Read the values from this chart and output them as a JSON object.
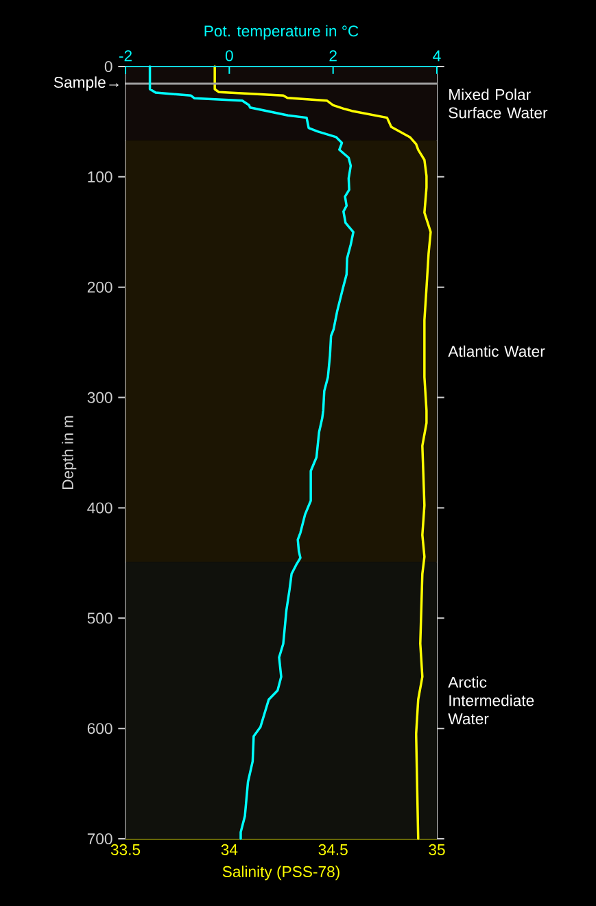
{
  "chart_data": {
    "type": "line",
    "xlabel": "Salinity (PSS-78)",
    "x2label": "Pot. temperature in °C",
    "ylabel": "Depth in m",
    "xlim": [
      33.5,
      35
    ],
    "xticks": [
      33.5,
      34,
      34.5,
      35
    ],
    "x2lim": [
      -2,
      4
    ],
    "x2ticks": [
      -2,
      0,
      2,
      4
    ],
    "ylim": [
      700,
      0
    ],
    "yticks": [
      0,
      100,
      200,
      300,
      400,
      500,
      600,
      700
    ],
    "series": [
      {
        "color": "#ffff00",
        "x": [
          33.93,
          33.93,
          33.95,
          34.26,
          34.28,
          34.47,
          34.5,
          34.55,
          34.59,
          34.76,
          34.78,
          34.87,
          34.9,
          34.91,
          34.94,
          34.95,
          34.95,
          34.94,
          34.97,
          34.96,
          34.95,
          34.94,
          34.94,
          34.95,
          34.95,
          34.93,
          34.94,
          34.93,
          34.94,
          34.93,
          34.92,
          34.93,
          34.91,
          34.9,
          34.91
        ],
        "values": [
          0,
          20.5,
          23.2,
          26.3,
          28.4,
          30.9,
          35,
          38.1,
          40.2,
          46.4,
          54.7,
          64,
          70.3,
          75.4,
          84.7,
          99.3,
          109.6,
          132.4,
          150,
          169.7,
          200.8,
          229.8,
          281.6,
          311.7,
          323,
          343.8,
          397.7,
          424.6,
          444.3,
          459.9,
          523.1,
          553.1,
          573.8,
          604.9,
          700
        ]
      },
      {
        "color": "#00ffff",
        "axis": "x2",
        "x": [
          -1.53,
          -1.53,
          -1.42,
          -0.74,
          -0.67,
          0.25,
          0.38,
          0.4,
          1.13,
          1.49,
          1.53,
          1.7,
          2.06,
          2.17,
          2.12,
          2.3,
          2.34,
          2.3,
          2.31,
          2.23,
          2.26,
          2.2,
          2.24,
          2.39,
          2.34,
          2.27,
          2.26,
          2.19,
          2.08,
          2.01,
          1.96,
          1.94,
          1.9,
          1.83,
          1.81,
          1.79,
          1.73,
          1.68,
          1.57,
          1.57,
          1.46,
          1.37,
          1.32,
          1.34,
          1.37,
          1.29,
          1.2,
          1.16,
          1.1,
          1.04,
          0.96,
          1.0,
          0.93,
          0.76,
          0.6,
          0.47,
          0.45,
          0.36,
          0.3,
          0.22,
          0.22
        ],
        "values": [
          0,
          20.5,
          23.6,
          26.3,
          28.8,
          30.9,
          35,
          37.1,
          44.3,
          46.4,
          55.7,
          58.8,
          64,
          69.2,
          75.4,
          82.7,
          90,
          101.3,
          111.7,
          117.9,
          126.2,
          131.4,
          141.7,
          150,
          161.4,
          173.9,
          188.4,
          200.8,
          221.5,
          238.1,
          244.3,
          261.9,
          281.6,
          294.1,
          311.7,
          318.9,
          331.4,
          354.2,
          366.6,
          393.5,
          406,
          422.6,
          428.8,
          439.2,
          445.4,
          451.6,
          459.9,
          474.4,
          493,
          523.1,
          535.5,
          553.1,
          565.6,
          573.8,
          598.7,
          607,
          629.8,
          648.4,
          679.5,
          694,
          700
        ]
      }
    ],
    "bands": [
      {
        "axis": "y",
        "from": 0,
        "to": 67,
        "label": "Mixed Polar Surface Water",
        "color": "#110a08"
      },
      {
        "axis": "y",
        "from": 67,
        "to": 449,
        "label": "Atlantic Water",
        "color": "#1c1503"
      },
      {
        "axis": "y",
        "from": 449,
        "to": 700,
        "label": "Arctic Intermediate Water",
        "color": "#10110c"
      }
    ],
    "ref_lines": [
      {
        "axis": "y",
        "value": 15.5,
        "label": "Sample→",
        "color": "#a0a0a0"
      }
    ]
  }
}
